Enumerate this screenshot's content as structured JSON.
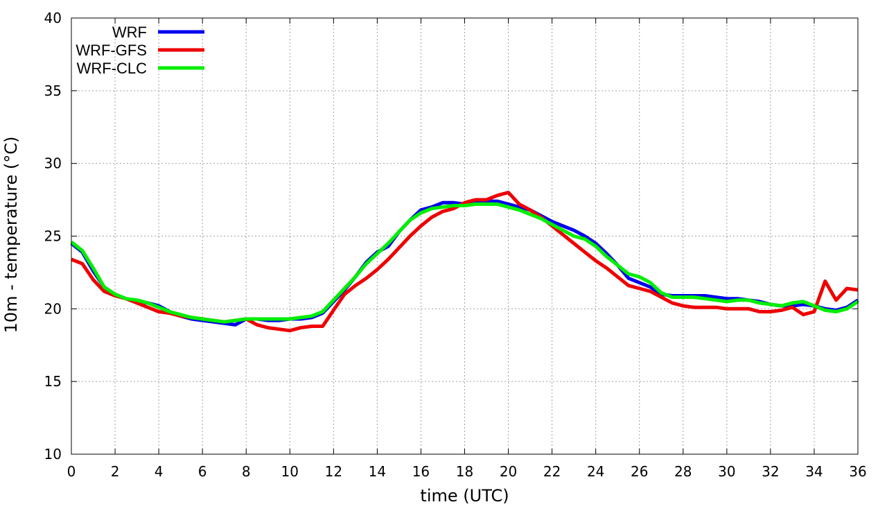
{
  "chart_data": {
    "type": "line",
    "xlabel": "time (UTC)",
    "ylabel": "10m - temperature (°C)",
    "xlim": [
      0,
      36
    ],
    "ylim": [
      10,
      40
    ],
    "xticks": [
      0,
      2,
      4,
      6,
      8,
      10,
      12,
      14,
      16,
      18,
      20,
      22,
      24,
      26,
      28,
      30,
      32,
      34,
      36
    ],
    "yticks": [
      10,
      15,
      20,
      25,
      30,
      35,
      40
    ],
    "grid": true,
    "legend_position": "top-left",
    "x": [
      0,
      0.5,
      1,
      1.5,
      2,
      2.5,
      3,
      3.5,
      4,
      4.5,
      5,
      5.5,
      6,
      6.5,
      7,
      7.5,
      8,
      8.5,
      9,
      9.5,
      10,
      10.5,
      11,
      11.5,
      12,
      12.5,
      13,
      13.5,
      14,
      14.5,
      15,
      15.5,
      16,
      16.5,
      17,
      17.5,
      18,
      18.5,
      19,
      19.5,
      20,
      20.5,
      21,
      21.5,
      22,
      22.5,
      23,
      23.5,
      24,
      24.5,
      25,
      25.5,
      26,
      26.5,
      27,
      27.5,
      28,
      28.5,
      29,
      29.5,
      30,
      30.5,
      31,
      31.5,
      32,
      32.5,
      33,
      33.5,
      34,
      34.5,
      35,
      35.5,
      36
    ],
    "series": [
      {
        "name": "WRF",
        "color": "#0000ee",
        "values": [
          24.5,
          23.9,
          22.6,
          21.5,
          21.0,
          20.7,
          20.5,
          20.4,
          20.2,
          19.8,
          19.5,
          19.3,
          19.2,
          19.1,
          19.0,
          18.9,
          19.3,
          19.3,
          19.2,
          19.2,
          19.3,
          19.3,
          19.4,
          19.7,
          20.5,
          21.3,
          22.2,
          23.2,
          23.9,
          24.3,
          25.3,
          26.1,
          26.8,
          27.0,
          27.3,
          27.3,
          27.2,
          27.3,
          27.4,
          27.4,
          27.2,
          27.0,
          26.8,
          26.4,
          26.0,
          25.7,
          25.4,
          25.0,
          24.5,
          23.8,
          23.0,
          22.1,
          21.8,
          21.5,
          21.0,
          20.9,
          20.9,
          20.9,
          20.9,
          20.8,
          20.7,
          20.7,
          20.6,
          20.5,
          20.3,
          20.2,
          20.2,
          20.3,
          20.2,
          20.0,
          19.9,
          20.1,
          20.6
        ]
      },
      {
        "name": "WRF-GFS",
        "color": "#ee0000",
        "values": [
          23.4,
          23.1,
          22.0,
          21.2,
          20.9,
          20.7,
          20.4,
          20.1,
          19.8,
          19.7,
          19.5,
          19.4,
          19.3,
          19.2,
          19.1,
          19.2,
          19.3,
          18.9,
          18.7,
          18.6,
          18.5,
          18.7,
          18.8,
          18.8,
          19.9,
          21.0,
          21.6,
          22.1,
          22.7,
          23.4,
          24.2,
          25.0,
          25.7,
          26.3,
          26.7,
          26.9,
          27.3,
          27.5,
          27.5,
          27.8,
          28.0,
          27.2,
          26.8,
          26.3,
          25.7,
          25.1,
          24.5,
          23.9,
          23.3,
          22.8,
          22.2,
          21.6,
          21.4,
          21.2,
          20.8,
          20.4,
          20.2,
          20.1,
          20.1,
          20.1,
          20.0,
          20.0,
          20.0,
          19.8,
          19.8,
          19.9,
          20.1,
          19.6,
          19.8,
          21.9,
          20.6,
          21.4,
          21.3
        ]
      },
      {
        "name": "WRF-CLC",
        "color": "#00ee00",
        "values": [
          24.6,
          24.0,
          22.8,
          21.5,
          21.0,
          20.7,
          20.6,
          20.4,
          20.1,
          19.8,
          19.6,
          19.4,
          19.3,
          19.2,
          19.1,
          19.2,
          19.3,
          19.3,
          19.3,
          19.3,
          19.3,
          19.4,
          19.5,
          19.8,
          20.6,
          21.4,
          22.2,
          23.1,
          23.8,
          24.5,
          25.3,
          26.1,
          26.6,
          26.9,
          27.0,
          27.1,
          27.1,
          27.2,
          27.2,
          27.2,
          27.0,
          26.8,
          26.5,
          26.2,
          25.8,
          25.4,
          25.0,
          24.8,
          24.3,
          23.6,
          23.0,
          22.4,
          22.2,
          21.8,
          21.1,
          20.8,
          20.8,
          20.8,
          20.7,
          20.6,
          20.5,
          20.6,
          20.6,
          20.4,
          20.3,
          20.2,
          20.4,
          20.5,
          20.2,
          19.9,
          19.8,
          20.0,
          20.5
        ]
      }
    ]
  }
}
